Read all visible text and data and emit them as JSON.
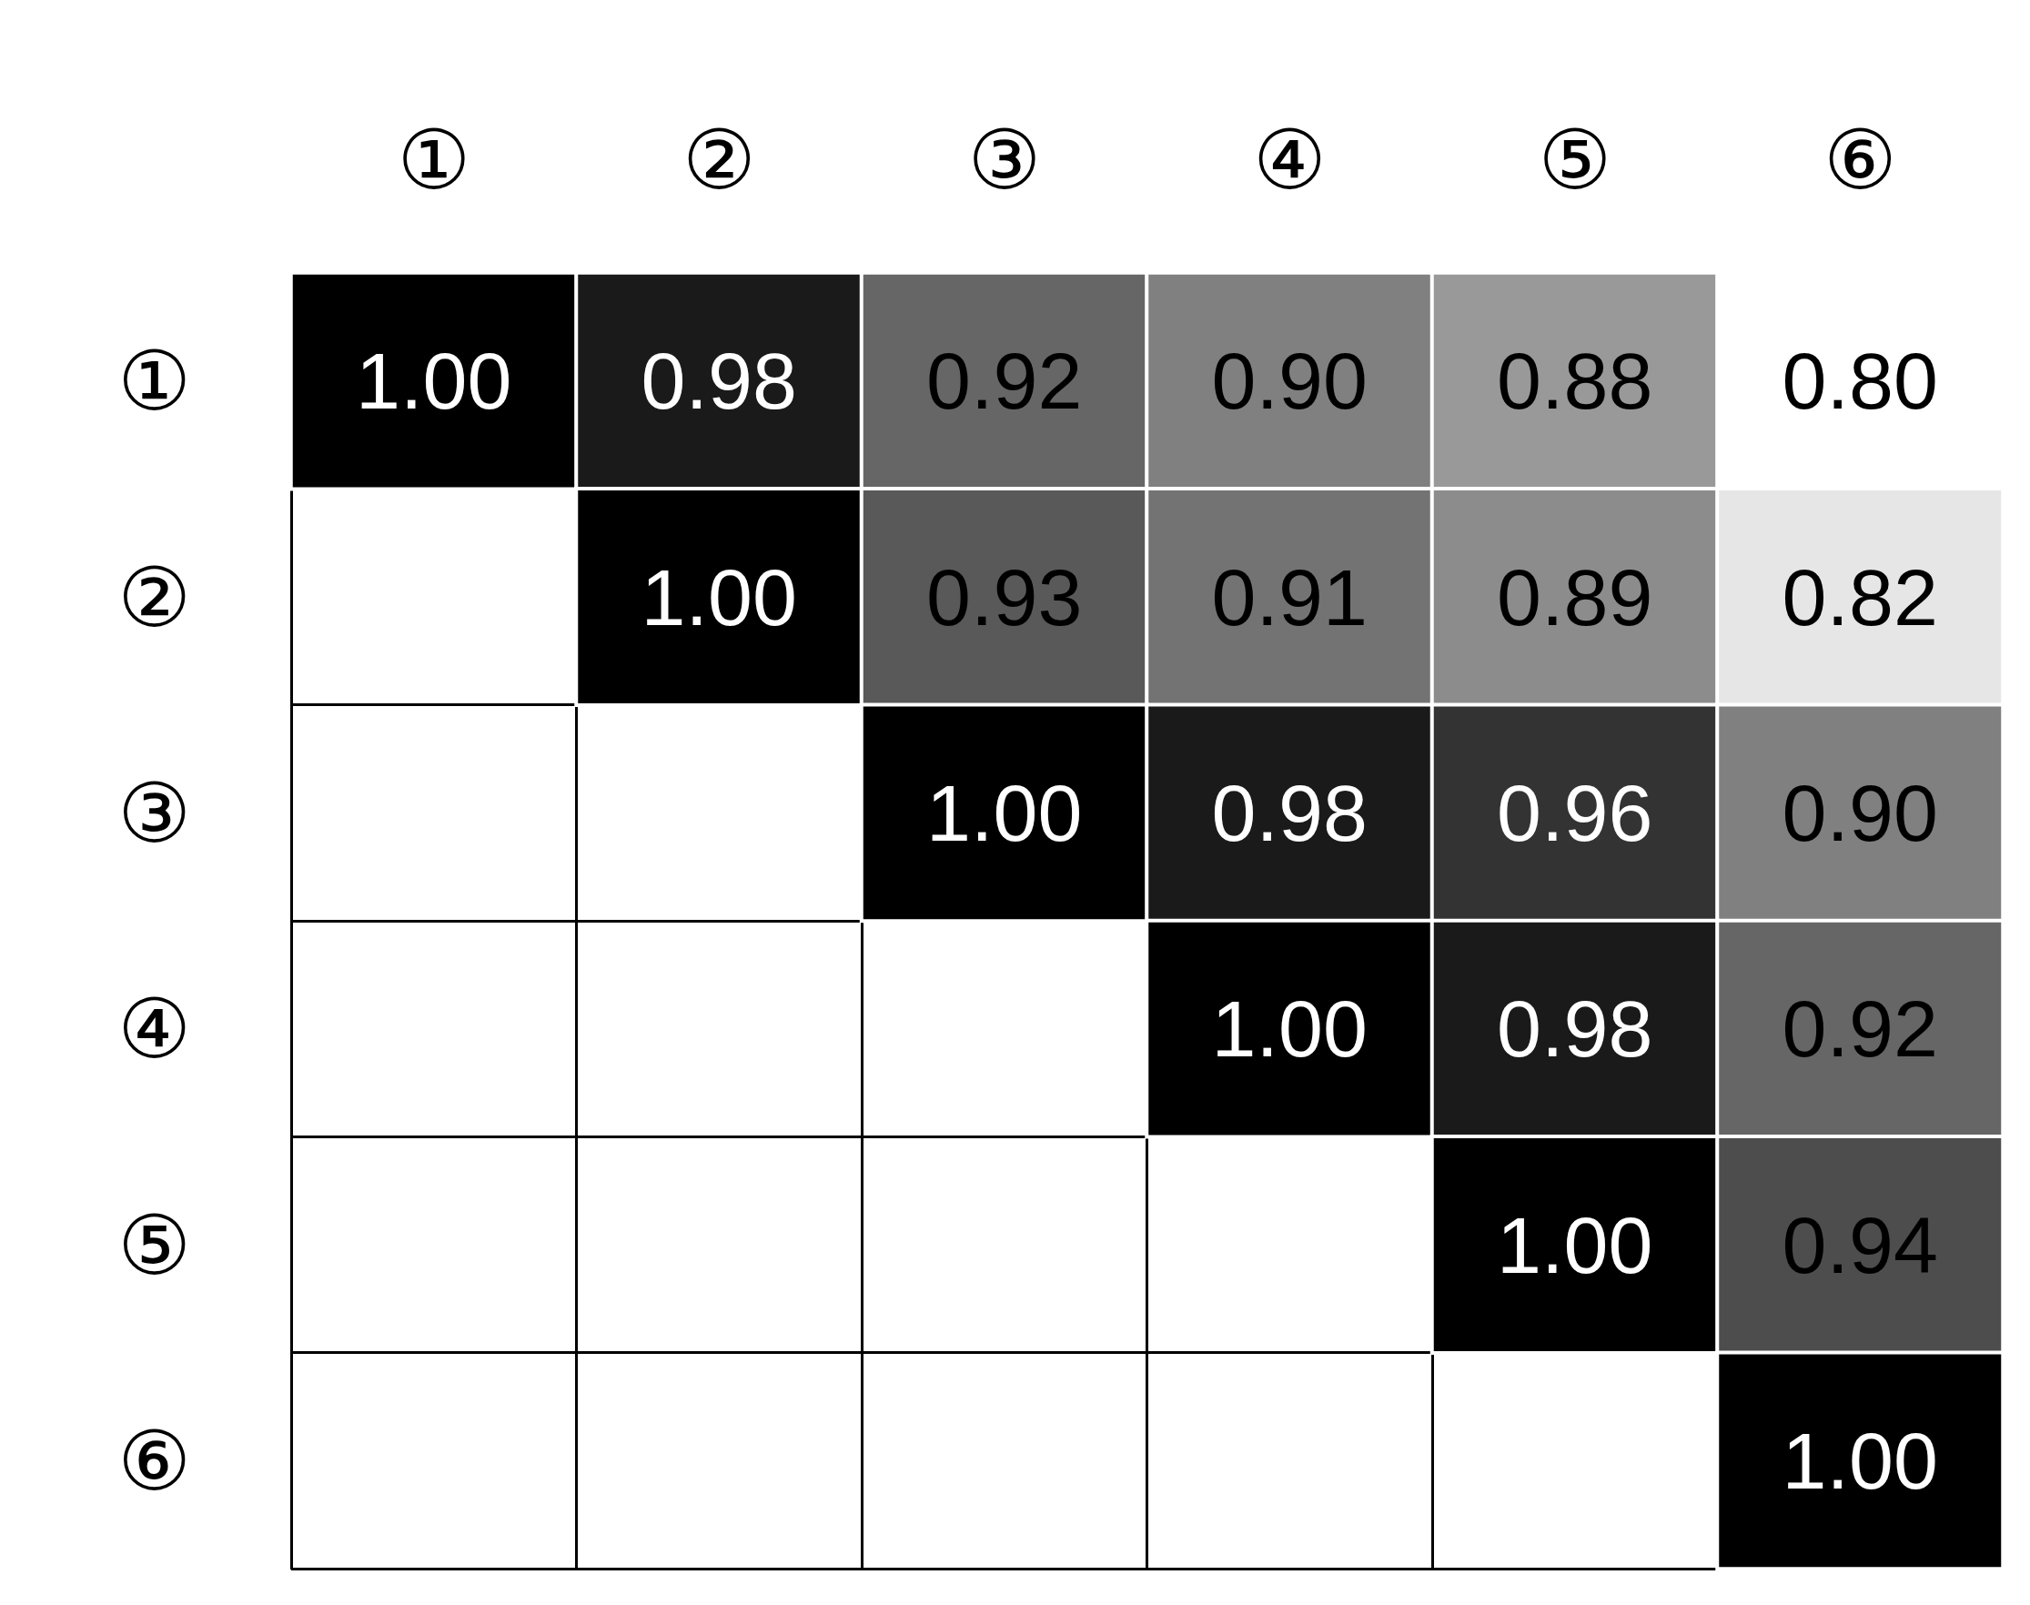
{
  "chart_data": {
    "type": "heatmap",
    "categories": [
      "①",
      "②",
      "③",
      "④",
      "⑤",
      "⑥"
    ],
    "y_categories": [
      "①",
      "②",
      "③",
      "④",
      "⑤",
      "⑥"
    ],
    "cells": [
      [
        1.0,
        0.98,
        0.92,
        0.9,
        0.88,
        0.8
      ],
      [
        null,
        1.0,
        0.93,
        0.91,
        0.89,
        0.82
      ],
      [
        null,
        null,
        1.0,
        0.98,
        0.96,
        0.9
      ],
      [
        null,
        null,
        null,
        1.0,
        0.98,
        0.92
      ],
      [
        null,
        null,
        null,
        null,
        1.0,
        0.94
      ],
      [
        null,
        null,
        null,
        null,
        null,
        1.0
      ]
    ],
    "cell_labels": [
      [
        "1.00",
        "0.98",
        "0.92",
        "0.90",
        "0.88",
        "0.80"
      ],
      [
        null,
        "1.00",
        "0.93",
        "0.91",
        "0.89",
        "0.82"
      ],
      [
        null,
        null,
        "1.00",
        "0.98",
        "0.96",
        "0.90"
      ],
      [
        null,
        null,
        null,
        "1.00",
        "0.98",
        "0.92"
      ],
      [
        null,
        null,
        null,
        null,
        "1.00",
        "0.94"
      ],
      [
        null,
        null,
        null,
        null,
        null,
        "1.00"
      ]
    ]
  }
}
